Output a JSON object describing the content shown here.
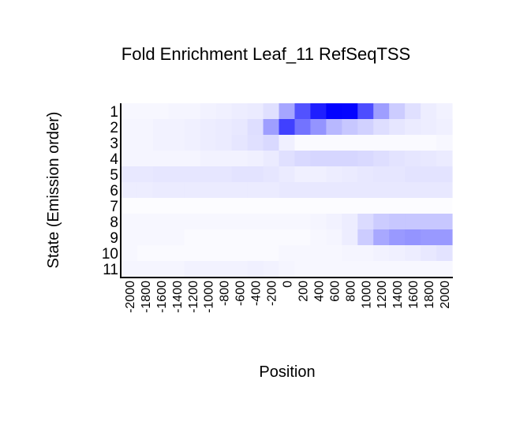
{
  "chart_data": {
    "type": "heatmap",
    "title": "Fold Enrichment Leaf_11 RefSeqTSS",
    "xlabel": "Position",
    "ylabel": "State (Emission order)",
    "x": [
      -2000,
      -1800,
      -1600,
      -1400,
      -1200,
      -1000,
      -800,
      -600,
      -400,
      -200,
      0,
      200,
      400,
      600,
      800,
      1000,
      1200,
      1400,
      1600,
      1800,
      2000
    ],
    "x_tick_labels": [
      "-2000",
      "-1800",
      "-1600",
      "-1400",
      "-1200",
      "-1000",
      "-800",
      "-600",
      "-400",
      "-200",
      "0",
      "200",
      "400",
      "600",
      "800",
      "1000",
      "1200",
      "1400",
      "1600",
      "1800",
      "2000"
    ],
    "y_tick_labels": [
      "1",
      "2",
      "3",
      "4",
      "5",
      "6",
      "7",
      "8",
      "9",
      "10",
      "11"
    ],
    "color_low": "#ffffff",
    "color_high": "#0000ff",
    "values": [
      [
        0.03,
        0.03,
        0.03,
        0.04,
        0.04,
        0.05,
        0.06,
        0.07,
        0.08,
        0.12,
        0.35,
        0.68,
        0.88,
        0.99,
        0.98,
        0.7,
        0.38,
        0.2,
        0.12,
        0.07,
        0.05
      ],
      [
        0.04,
        0.04,
        0.05,
        0.05,
        0.06,
        0.07,
        0.08,
        0.09,
        0.13,
        0.38,
        0.75,
        0.55,
        0.42,
        0.28,
        0.22,
        0.18,
        0.13,
        0.1,
        0.08,
        0.07,
        0.06
      ],
      [
        0.04,
        0.04,
        0.05,
        0.05,
        0.06,
        0.07,
        0.08,
        0.1,
        0.12,
        0.15,
        0.06,
        0.02,
        0.02,
        0.02,
        0.02,
        0.02,
        0.02,
        0.02,
        0.02,
        0.02,
        0.03
      ],
      [
        0.04,
        0.04,
        0.04,
        0.04,
        0.04,
        0.05,
        0.05,
        0.05,
        0.06,
        0.08,
        0.12,
        0.15,
        0.16,
        0.16,
        0.16,
        0.15,
        0.13,
        0.11,
        0.1,
        0.09,
        0.08
      ],
      [
        0.09,
        0.09,
        0.1,
        0.1,
        0.1,
        0.1,
        0.1,
        0.11,
        0.11,
        0.1,
        0.08,
        0.06,
        0.06,
        0.07,
        0.08,
        0.09,
        0.1,
        0.1,
        0.11,
        0.11,
        0.11
      ],
      [
        0.07,
        0.07,
        0.08,
        0.08,
        0.08,
        0.08,
        0.08,
        0.08,
        0.08,
        0.08,
        0.09,
        0.09,
        0.09,
        0.09,
        0.09,
        0.09,
        0.09,
        0.09,
        0.09,
        0.09,
        0.09
      ],
      [
        0.01,
        0.01,
        0.01,
        0.01,
        0.01,
        0.01,
        0.01,
        0.01,
        0.01,
        0.01,
        0.01,
        0.01,
        0.01,
        0.01,
        0.01,
        0.01,
        0.01,
        0.01,
        0.01,
        0.01,
        0.01
      ],
      [
        0.03,
        0.03,
        0.03,
        0.03,
        0.03,
        0.03,
        0.03,
        0.03,
        0.03,
        0.03,
        0.03,
        0.03,
        0.04,
        0.05,
        0.07,
        0.14,
        0.2,
        0.22,
        0.22,
        0.22,
        0.22
      ],
      [
        0.03,
        0.03,
        0.03,
        0.03,
        0.02,
        0.02,
        0.02,
        0.02,
        0.02,
        0.02,
        0.02,
        0.02,
        0.03,
        0.04,
        0.07,
        0.2,
        0.34,
        0.4,
        0.42,
        0.4,
        0.4
      ],
      [
        0.03,
        0.02,
        0.02,
        0.02,
        0.02,
        0.02,
        0.02,
        0.02,
        0.02,
        0.02,
        0.03,
        0.03,
        0.03,
        0.03,
        0.04,
        0.04,
        0.05,
        0.06,
        0.07,
        0.09,
        0.11
      ],
      [
        0.04,
        0.04,
        0.04,
        0.04,
        0.05,
        0.05,
        0.05,
        0.05,
        0.06,
        0.05,
        0.04,
        0.03,
        0.03,
        0.03,
        0.03,
        0.03,
        0.03,
        0.03,
        0.03,
        0.03,
        0.03
      ]
    ]
  }
}
